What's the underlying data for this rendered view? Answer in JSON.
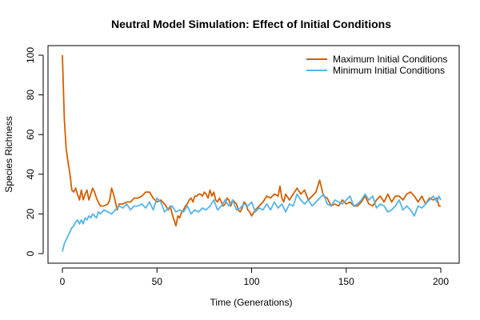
{
  "chart_data": {
    "type": "line",
    "title": "Neutral Model Simulation: Effect of Initial Conditions",
    "xlabel": "Time (Generations)",
    "ylabel": "Species Richness",
    "xlim": [
      0,
      200
    ],
    "ylim": [
      0,
      100
    ],
    "xticks": [
      0,
      50,
      100,
      150,
      200
    ],
    "yticks": [
      0,
      20,
      40,
      60,
      80,
      100
    ],
    "grid": false,
    "legend_position": "top-right",
    "series": [
      {
        "name": "Maximum Initial Conditions",
        "color": "#D55E00",
        "points": [
          [
            0,
            100
          ],
          [
            1,
            68
          ],
          [
            2,
            53
          ],
          [
            3,
            46
          ],
          [
            4,
            40
          ],
          [
            5,
            32
          ],
          [
            6,
            31
          ],
          [
            7,
            33
          ],
          [
            8,
            30
          ],
          [
            9,
            27
          ],
          [
            10,
            32
          ],
          [
            11,
            27
          ],
          [
            12,
            30
          ],
          [
            13,
            32
          ],
          [
            14,
            27
          ],
          [
            15,
            30
          ],
          [
            16,
            33
          ],
          [
            17,
            31
          ],
          [
            18,
            28
          ],
          [
            19,
            26
          ],
          [
            20,
            24
          ],
          [
            22,
            24
          ],
          [
            24,
            25
          ],
          [
            25,
            27
          ],
          [
            26,
            33
          ],
          [
            27,
            30
          ],
          [
            28,
            26
          ],
          [
            29,
            22
          ],
          [
            30,
            25
          ],
          [
            32,
            25
          ],
          [
            34,
            26
          ],
          [
            36,
            26
          ],
          [
            38,
            28
          ],
          [
            40,
            28
          ],
          [
            42,
            29
          ],
          [
            44,
            31
          ],
          [
            46,
            31
          ],
          [
            48,
            28
          ],
          [
            50,
            26
          ],
          [
            52,
            27
          ],
          [
            54,
            25
          ],
          [
            56,
            22
          ],
          [
            57,
            24
          ],
          [
            58,
            20
          ],
          [
            59,
            17
          ],
          [
            60,
            14
          ],
          [
            61,
            19
          ],
          [
            62,
            18
          ],
          [
            63,
            21
          ],
          [
            64,
            22
          ],
          [
            65,
            24
          ],
          [
            66,
            25
          ],
          [
            67,
            27
          ],
          [
            68,
            28
          ],
          [
            69,
            26
          ],
          [
            70,
            29
          ],
          [
            71,
            29
          ],
          [
            72,
            30
          ],
          [
            73,
            30
          ],
          [
            74,
            29
          ],
          [
            75,
            31
          ],
          [
            76,
            30
          ],
          [
            77,
            28
          ],
          [
            78,
            32
          ],
          [
            79,
            29
          ],
          [
            80,
            31
          ],
          [
            81,
            27
          ],
          [
            82,
            26
          ],
          [
            83,
            28
          ],
          [
            84,
            26
          ],
          [
            85,
            24
          ],
          [
            86,
            25
          ],
          [
            87,
            28
          ],
          [
            88,
            27
          ],
          [
            89,
            24
          ],
          [
            90,
            27
          ],
          [
            91,
            26
          ],
          [
            92,
            25
          ],
          [
            93,
            22
          ],
          [
            94,
            21
          ],
          [
            95,
            23
          ],
          [
            96,
            26
          ],
          [
            97,
            25
          ],
          [
            98,
            22
          ],
          [
            99,
            21
          ],
          [
            100,
            19
          ],
          [
            102,
            22
          ],
          [
            104,
            24
          ],
          [
            106,
            26
          ],
          [
            108,
            29
          ],
          [
            110,
            28
          ],
          [
            112,
            30
          ],
          [
            114,
            29
          ],
          [
            115,
            34
          ],
          [
            116,
            28
          ],
          [
            117,
            26
          ],
          [
            118,
            30
          ],
          [
            120,
            27
          ],
          [
            122,
            30
          ],
          [
            124,
            33
          ],
          [
            126,
            30
          ],
          [
            128,
            32
          ],
          [
            130,
            27
          ],
          [
            132,
            29
          ],
          [
            134,
            31
          ],
          [
            136,
            37
          ],
          [
            137,
            33
          ],
          [
            138,
            29
          ],
          [
            140,
            28
          ],
          [
            142,
            24
          ],
          [
            144,
            25
          ],
          [
            146,
            24
          ],
          [
            148,
            27
          ],
          [
            150,
            25
          ],
          [
            152,
            26
          ],
          [
            154,
            24
          ],
          [
            156,
            24
          ],
          [
            158,
            26
          ],
          [
            160,
            29
          ],
          [
            162,
            25
          ],
          [
            164,
            24
          ],
          [
            166,
            27
          ],
          [
            168,
            29
          ],
          [
            170,
            26
          ],
          [
            172,
            30
          ],
          [
            174,
            26
          ],
          [
            176,
            29
          ],
          [
            178,
            29
          ],
          [
            180,
            27
          ],
          [
            182,
            30
          ],
          [
            184,
            31
          ],
          [
            186,
            29
          ],
          [
            188,
            26
          ],
          [
            190,
            29
          ],
          [
            192,
            25
          ],
          [
            194,
            28
          ],
          [
            196,
            27
          ],
          [
            198,
            28
          ],
          [
            199,
            24
          ],
          [
            200,
            24
          ]
        ]
      },
      {
        "name": "Minimum Initial Conditions",
        "color": "#56B4E9",
        "points": [
          [
            0,
            1
          ],
          [
            1,
            5
          ],
          [
            2,
            7
          ],
          [
            3,
            9
          ],
          [
            4,
            11
          ],
          [
            5,
            13
          ],
          [
            6,
            14
          ],
          [
            7,
            16
          ],
          [
            8,
            17
          ],
          [
            9,
            15
          ],
          [
            10,
            17
          ],
          [
            11,
            15
          ],
          [
            12,
            18
          ],
          [
            13,
            17
          ],
          [
            14,
            19
          ],
          [
            15,
            18
          ],
          [
            16,
            20
          ],
          [
            17,
            19
          ],
          [
            18,
            18
          ],
          [
            19,
            21
          ],
          [
            20,
            20
          ],
          [
            22,
            22
          ],
          [
            24,
            21
          ],
          [
            26,
            20
          ],
          [
            28,
            22
          ],
          [
            30,
            24
          ],
          [
            32,
            23
          ],
          [
            34,
            25
          ],
          [
            36,
            22
          ],
          [
            38,
            24
          ],
          [
            40,
            24
          ],
          [
            42,
            25
          ],
          [
            44,
            23
          ],
          [
            46,
            26
          ],
          [
            48,
            22
          ],
          [
            50,
            28
          ],
          [
            52,
            26
          ],
          [
            54,
            21
          ],
          [
            56,
            23
          ],
          [
            58,
            24
          ],
          [
            60,
            21
          ],
          [
            62,
            22
          ],
          [
            64,
            21
          ],
          [
            66,
            24
          ],
          [
            68,
            20
          ],
          [
            70,
            22
          ],
          [
            72,
            21
          ],
          [
            74,
            23
          ],
          [
            76,
            22
          ],
          [
            78,
            24
          ],
          [
            80,
            27
          ],
          [
            82,
            22
          ],
          [
            84,
            24
          ],
          [
            86,
            27
          ],
          [
            88,
            24
          ],
          [
            90,
            27
          ],
          [
            92,
            22
          ],
          [
            94,
            23
          ],
          [
            96,
            25
          ],
          [
            98,
            24
          ],
          [
            100,
            26
          ],
          [
            102,
            21
          ],
          [
            104,
            23
          ],
          [
            106,
            22
          ],
          [
            108,
            25
          ],
          [
            110,
            22
          ],
          [
            112,
            26
          ],
          [
            114,
            23
          ],
          [
            116,
            25
          ],
          [
            118,
            21
          ],
          [
            120,
            25
          ],
          [
            122,
            24
          ],
          [
            124,
            30
          ],
          [
            126,
            27
          ],
          [
            128,
            25
          ],
          [
            130,
            27
          ],
          [
            132,
            24
          ],
          [
            134,
            26
          ],
          [
            136,
            28
          ],
          [
            138,
            30
          ],
          [
            140,
            25
          ],
          [
            142,
            24
          ],
          [
            144,
            27
          ],
          [
            146,
            26
          ],
          [
            148,
            25
          ],
          [
            150,
            27
          ],
          [
            152,
            29
          ],
          [
            154,
            24
          ],
          [
            156,
            25
          ],
          [
            158,
            27
          ],
          [
            160,
            30
          ],
          [
            162,
            27
          ],
          [
            164,
            29
          ],
          [
            166,
            23
          ],
          [
            168,
            25
          ],
          [
            170,
            24
          ],
          [
            172,
            21
          ],
          [
            174,
            22
          ],
          [
            176,
            24
          ],
          [
            178,
            27
          ],
          [
            180,
            22
          ],
          [
            182,
            24
          ],
          [
            184,
            22
          ],
          [
            186,
            19
          ],
          [
            188,
            24
          ],
          [
            190,
            23
          ],
          [
            192,
            25
          ],
          [
            194,
            27
          ],
          [
            196,
            29
          ],
          [
            198,
            26
          ],
          [
            199,
            29
          ],
          [
            200,
            27
          ]
        ]
      }
    ]
  }
}
